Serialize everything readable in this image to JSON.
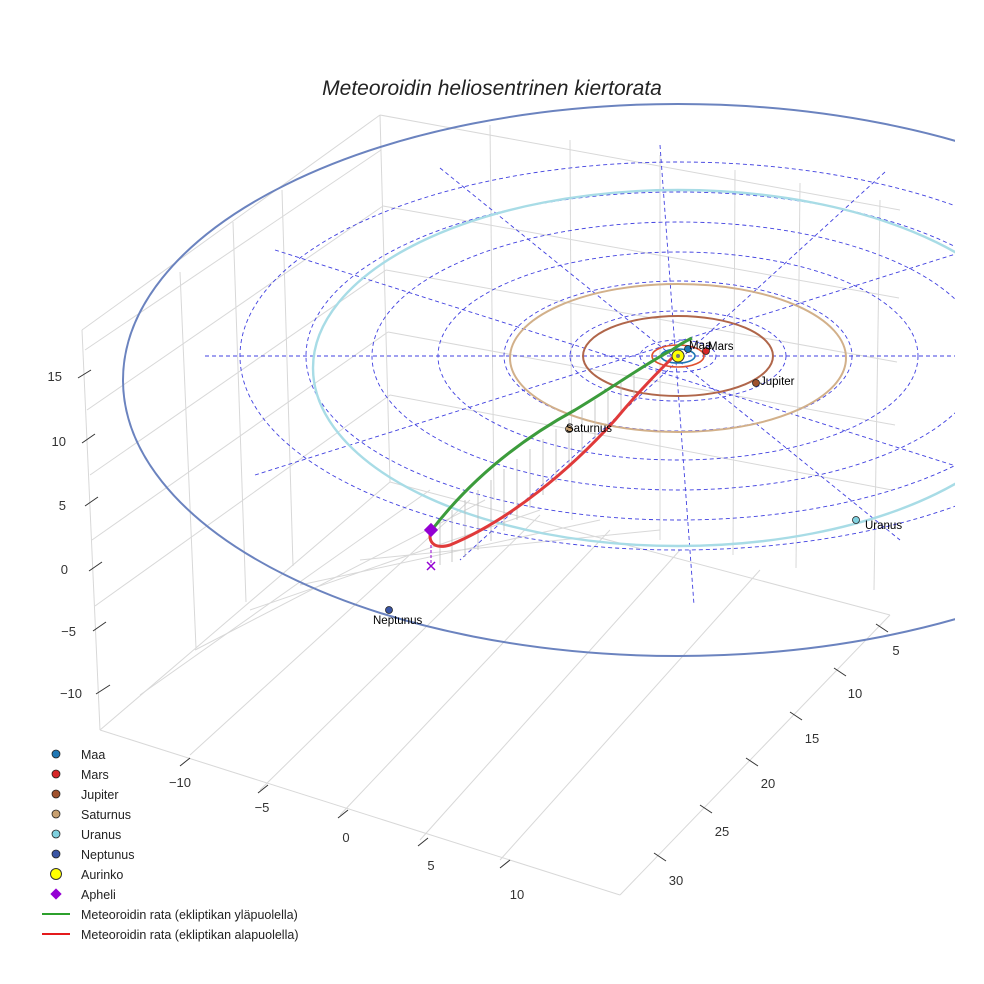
{
  "chart_data": {
    "type": "scatter3d",
    "title": "Meteoroidin heliosentrinen kiertorata",
    "z_ticks": [
      "15",
      "10",
      "5",
      "0",
      "−5",
      "−10"
    ],
    "x_ticks": [
      "−10",
      "−5",
      "0",
      "5",
      "10"
    ],
    "y_ticks": [
      "5",
      "10",
      "15",
      "20",
      "25",
      "30"
    ],
    "planets": [
      {
        "name": "Maa",
        "label": "Maa",
        "color": "#1f77b4"
      },
      {
        "name": "Mars",
        "label": "Mars",
        "color": "#d62728"
      },
      {
        "name": "Jupiter",
        "label": "Jupiter",
        "color": "#a0522d"
      },
      {
        "name": "Saturnus",
        "label": "Saturnus",
        "color": "#c8a070"
      },
      {
        "name": "Uranus",
        "label": "Uranus",
        "color": "#7fd0de"
      },
      {
        "name": "Neptunus",
        "label": "Neptunus",
        "color": "#3a55a4"
      }
    ],
    "sun": {
      "name": "Aurinko",
      "color": "#ffff00"
    },
    "aphelion": {
      "name": "Apheli",
      "color": "#9400d3"
    },
    "meteoroid_orbit": [
      {
        "name": "Meteoroidin rata (ekliptikan yläpuolella)",
        "color": "#2ca02c"
      },
      {
        "name": "Meteoroidin rata (ekliptikan alapuolella)",
        "color": "#e41a1c"
      }
    ]
  }
}
